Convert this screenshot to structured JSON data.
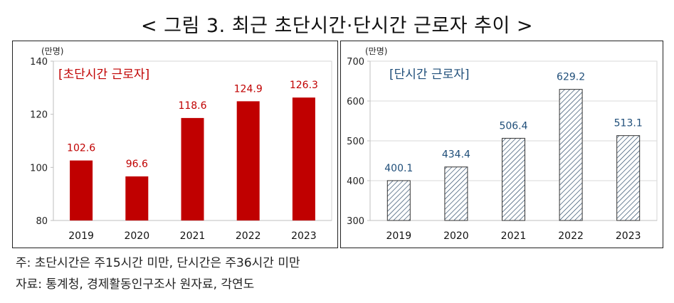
{
  "title": "< 그림 3. 최근 초단시간·단시간 근로자 추이 >",
  "notes": {
    "note": "주: 초단시간은 주15시간 미만, 단시간은 주36시간 미만",
    "source": "자료: 통계청, 경제활동인구조사 원자료, 각연도"
  },
  "colors": {
    "left_bar": "#c00000",
    "left_label": "#c00000",
    "right_bar_hatch": "#1f3f5f",
    "right_label": "#1f4e79"
  },
  "chart_data": [
    {
      "type": "bar",
      "title": "[초단시간 근로자]",
      "unit": "(만명)",
      "categories": [
        "2019",
        "2020",
        "2021",
        "2022",
        "2023"
      ],
      "values": [
        102.6,
        96.6,
        118.6,
        124.9,
        126.3
      ],
      "value_labels": [
        "102.6",
        "96.6",
        "118.6",
        "124.9",
        "126.3"
      ],
      "ylim": [
        80,
        140
      ],
      "yticks": [
        80,
        100,
        120,
        140
      ],
      "ytick_labels": [
        "80",
        "100",
        "120",
        "140"
      ],
      "bar_style": "solid",
      "grid": false
    },
    {
      "type": "bar",
      "title": "[단시간 근로자]",
      "unit": "(만명)",
      "categories": [
        "2019",
        "2020",
        "2021",
        "2022",
        "2023"
      ],
      "values": [
        400.1,
        434.4,
        506.4,
        629.2,
        513.1
      ],
      "value_labels": [
        "400.1",
        "434.4",
        "506.4",
        "629.2",
        "513.1"
      ],
      "ylim": [
        300,
        700
      ],
      "yticks": [
        300,
        400,
        500,
        600,
        700
      ],
      "ytick_labels": [
        "300",
        "400",
        "500",
        "600",
        "700"
      ],
      "bar_style": "hatched",
      "grid": true
    }
  ]
}
